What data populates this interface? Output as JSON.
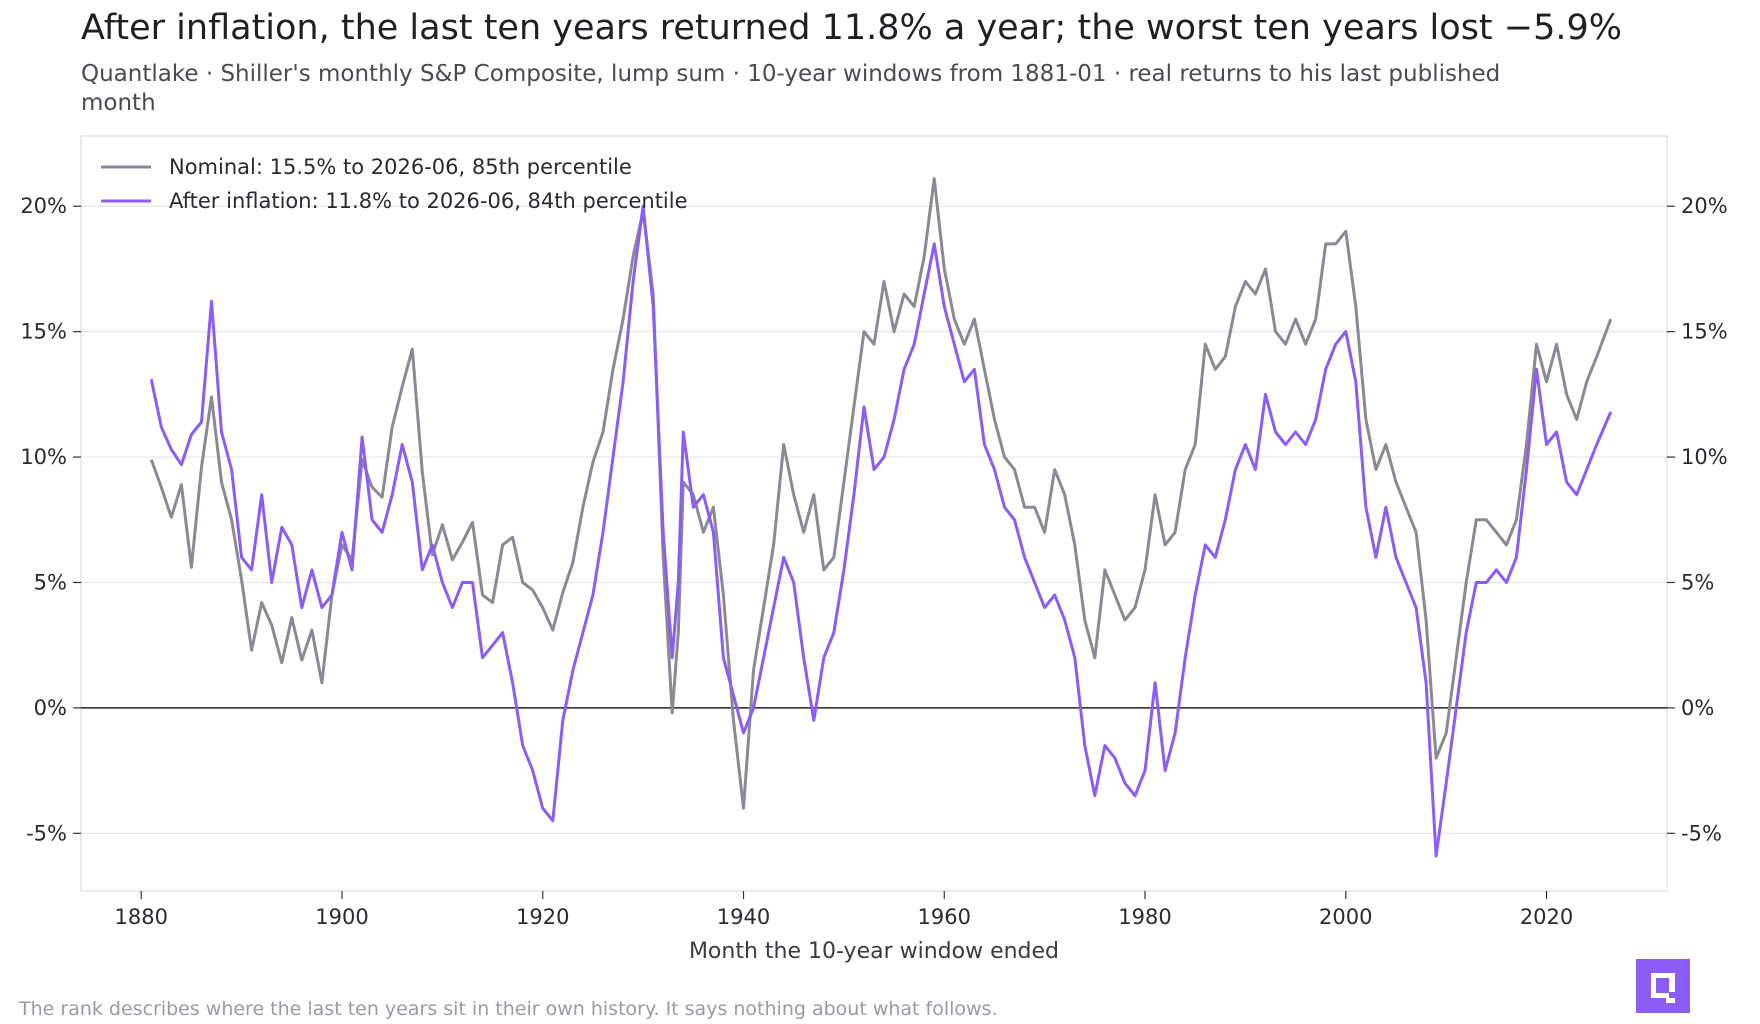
{
  "header": {
    "title": "After inflation, the last ten years returned 11.8% a year; the worst ten years lost −5.9%",
    "subtitle": "Quantlake · Shiller's monthly S&P Composite, lump sum · 10-year windows from 1881-01 · real returns to his last published month"
  },
  "footer": {
    "note": "The rank describes where the last ten years sit in their own history. It says nothing about what follows."
  },
  "logo": {
    "icon": "quantlake-logo-icon",
    "color": "#8b5cf6"
  },
  "chart_data": {
    "type": "line",
    "xlabel": "Month the 10-year window ended",
    "ylabel": "",
    "xlim": [
      1874,
      2032
    ],
    "ylim": [
      -7.3,
      22.8
    ],
    "x_ticks": [
      1880,
      1900,
      1920,
      1940,
      1960,
      1980,
      2000,
      2020
    ],
    "x_tick_labels": [
      "1880",
      "1900",
      "1920",
      "1940",
      "1960",
      "1980",
      "2000",
      "2020"
    ],
    "y_ticks": [
      -5,
      0,
      5,
      10,
      15,
      20
    ],
    "y_tick_labels": [
      "-5%",
      "0%",
      "5%",
      "10%",
      "15%",
      "20%"
    ],
    "zero_line": true,
    "grid": "horizontal",
    "legend_position": "top-left",
    "series": [
      {
        "name": "Nominal: 15.5% to 2026-06, 85th percentile",
        "color": "#8a8a94",
        "points": [
          [
            1881.0,
            9.9
          ],
          [
            1882.0,
            8.8
          ],
          [
            1883.0,
            7.6
          ],
          [
            1884.0,
            8.9
          ],
          [
            1885.0,
            5.6
          ],
          [
            1886.0,
            9.6
          ],
          [
            1887.0,
            12.4
          ],
          [
            1888.0,
            9.0
          ],
          [
            1889.0,
            7.5
          ],
          [
            1890.0,
            5.1
          ],
          [
            1891.0,
            2.3
          ],
          [
            1892.0,
            4.2
          ],
          [
            1893.0,
            3.3
          ],
          [
            1894.0,
            1.8
          ],
          [
            1895.0,
            3.6
          ],
          [
            1896.0,
            1.9
          ],
          [
            1897.0,
            3.1
          ],
          [
            1898.0,
            1.0
          ],
          [
            1899.0,
            4.5
          ],
          [
            1900.0,
            6.5
          ],
          [
            1901.0,
            5.9
          ],
          [
            1902.0,
            9.9
          ],
          [
            1903.0,
            8.8
          ],
          [
            1904.0,
            8.4
          ],
          [
            1905.0,
            11.2
          ],
          [
            1906.0,
            12.8
          ],
          [
            1907.0,
            14.3
          ],
          [
            1908.0,
            9.4
          ],
          [
            1909.0,
            6.1
          ],
          [
            1910.0,
            7.3
          ],
          [
            1911.0,
            5.9
          ],
          [
            1912.0,
            6.6
          ],
          [
            1913.0,
            7.4
          ],
          [
            1914.0,
            4.5
          ],
          [
            1915.0,
            4.2
          ],
          [
            1916.0,
            6.5
          ],
          [
            1917.0,
            6.8
          ],
          [
            1918.0,
            5.0
          ],
          [
            1919.0,
            4.7
          ],
          [
            1920.0,
            4.0
          ],
          [
            1921.0,
            3.1
          ],
          [
            1922.0,
            4.6
          ],
          [
            1923.0,
            5.8
          ],
          [
            1924.0,
            8.0
          ],
          [
            1925.0,
            9.8
          ],
          [
            1926.0,
            11.0
          ],
          [
            1927.0,
            13.5
          ],
          [
            1928.0,
            15.5
          ],
          [
            1929.0,
            18.0
          ],
          [
            1930.0,
            19.8
          ],
          [
            1931.0,
            16.5
          ],
          [
            1932.0,
            6.0
          ],
          [
            1932.9,
            -0.2
          ],
          [
            1933.5,
            3.0
          ],
          [
            1934.0,
            9.0
          ],
          [
            1935.0,
            8.5
          ],
          [
            1936.0,
            7.0
          ],
          [
            1937.0,
            8.0
          ],
          [
            1938.0,
            4.5
          ],
          [
            1939.0,
            -0.5
          ],
          [
            1940.0,
            -4.0
          ],
          [
            1941.0,
            1.5
          ],
          [
            1942.0,
            4.0
          ],
          [
            1943.0,
            6.5
          ],
          [
            1944.0,
            10.5
          ],
          [
            1945.0,
            8.5
          ],
          [
            1946.0,
            7.0
          ],
          [
            1947.0,
            8.5
          ],
          [
            1948.0,
            5.5
          ],
          [
            1949.0,
            6.0
          ],
          [
            1950.0,
            9.0
          ],
          [
            1951.0,
            12.0
          ],
          [
            1952.0,
            15.0
          ],
          [
            1953.0,
            14.5
          ],
          [
            1954.0,
            17.0
          ],
          [
            1955.0,
            15.0
          ],
          [
            1956.0,
            16.5
          ],
          [
            1957.0,
            16.0
          ],
          [
            1958.0,
            18.0
          ],
          [
            1959.0,
            21.1
          ],
          [
            1960.0,
            17.5
          ],
          [
            1961.0,
            15.5
          ],
          [
            1962.0,
            14.5
          ],
          [
            1963.0,
            15.5
          ],
          [
            1964.0,
            13.5
          ],
          [
            1965.0,
            11.5
          ],
          [
            1966.0,
            10.0
          ],
          [
            1967.0,
            9.5
          ],
          [
            1968.0,
            8.0
          ],
          [
            1969.0,
            8.0
          ],
          [
            1970.0,
            7.0
          ],
          [
            1971.0,
            9.5
          ],
          [
            1972.0,
            8.5
          ],
          [
            1973.0,
            6.5
          ],
          [
            1974.0,
            3.5
          ],
          [
            1975.0,
            2.0
          ],
          [
            1976.0,
            5.5
          ],
          [
            1977.0,
            4.5
          ],
          [
            1978.0,
            3.5
          ],
          [
            1979.0,
            4.0
          ],
          [
            1980.0,
            5.5
          ],
          [
            1981.0,
            8.5
          ],
          [
            1982.0,
            6.5
          ],
          [
            1983.0,
            7.0
          ],
          [
            1984.0,
            9.5
          ],
          [
            1985.0,
            10.5
          ],
          [
            1986.0,
            14.5
          ],
          [
            1987.0,
            13.5
          ],
          [
            1988.0,
            14.0
          ],
          [
            1989.0,
            16.0
          ],
          [
            1990.0,
            17.0
          ],
          [
            1991.0,
            16.5
          ],
          [
            1992.0,
            17.5
          ],
          [
            1993.0,
            15.0
          ],
          [
            1994.0,
            14.5
          ],
          [
            1995.0,
            15.5
          ],
          [
            1996.0,
            14.5
          ],
          [
            1997.0,
            15.5
          ],
          [
            1998.0,
            18.5
          ],
          [
            1999.0,
            18.5
          ],
          [
            2000.0,
            19.0
          ],
          [
            2001.0,
            16.0
          ],
          [
            2002.0,
            11.5
          ],
          [
            2003.0,
            9.5
          ],
          [
            2004.0,
            10.5
          ],
          [
            2005.0,
            9.0
          ],
          [
            2006.0,
            8.0
          ],
          [
            2007.0,
            7.0
          ],
          [
            2008.0,
            3.5
          ],
          [
            2009.0,
            -2.0
          ],
          [
            2010.0,
            -1.0
          ],
          [
            2011.0,
            2.0
          ],
          [
            2012.0,
            5.0
          ],
          [
            2013.0,
            7.5
          ],
          [
            2014.0,
            7.5
          ],
          [
            2015.0,
            7.0
          ],
          [
            2016.0,
            6.5
          ],
          [
            2017.0,
            7.5
          ],
          [
            2018.0,
            10.5
          ],
          [
            2019.0,
            14.5
          ],
          [
            2020.0,
            13.0
          ],
          [
            2021.0,
            14.5
          ],
          [
            2022.0,
            12.5
          ],
          [
            2023.0,
            11.5
          ],
          [
            2024.0,
            13.0
          ],
          [
            2025.0,
            14.0
          ],
          [
            2026.4,
            15.5
          ]
        ]
      },
      {
        "name": "After inflation: 11.8% to 2026-06, 84th percentile",
        "color": "#8b5cf6",
        "points": [
          [
            1881.0,
            13.1
          ],
          [
            1882.0,
            11.2
          ],
          [
            1883.0,
            10.3
          ],
          [
            1884.0,
            9.7
          ],
          [
            1885.0,
            10.9
          ],
          [
            1886.0,
            11.4
          ],
          [
            1887.0,
            16.2
          ],
          [
            1888.0,
            11.0
          ],
          [
            1889.0,
            9.5
          ],
          [
            1890.0,
            6.0
          ],
          [
            1891.0,
            5.5
          ],
          [
            1892.0,
            8.5
          ],
          [
            1893.0,
            5.0
          ],
          [
            1894.0,
            7.2
          ],
          [
            1895.0,
            6.5
          ],
          [
            1896.0,
            4.0
          ],
          [
            1897.0,
            5.5
          ],
          [
            1898.0,
            4.0
          ],
          [
            1899.0,
            4.5
          ],
          [
            1900.0,
            7.0
          ],
          [
            1901.0,
            5.5
          ],
          [
            1902.0,
            10.8
          ],
          [
            1903.0,
            7.5
          ],
          [
            1904.0,
            7.0
          ],
          [
            1905.0,
            8.5
          ],
          [
            1906.0,
            10.5
          ],
          [
            1907.0,
            9.0
          ],
          [
            1908.0,
            5.5
          ],
          [
            1909.0,
            6.5
          ],
          [
            1910.0,
            5.0
          ],
          [
            1911.0,
            4.0
          ],
          [
            1912.0,
            5.0
          ],
          [
            1913.0,
            5.0
          ],
          [
            1914.0,
            2.0
          ],
          [
            1915.0,
            2.5
          ],
          [
            1916.0,
            3.0
          ],
          [
            1917.0,
            1.0
          ],
          [
            1918.0,
            -1.5
          ],
          [
            1919.0,
            -2.5
          ],
          [
            1920.0,
            -4.0
          ],
          [
            1921.0,
            -4.5
          ],
          [
            1922.0,
            -0.5
          ],
          [
            1923.0,
            1.5
          ],
          [
            1924.0,
            3.0
          ],
          [
            1925.0,
            4.5
          ],
          [
            1926.0,
            7.0
          ],
          [
            1927.0,
            10.0
          ],
          [
            1928.0,
            13.0
          ],
          [
            1929.0,
            17.0
          ],
          [
            1930.0,
            20.0
          ],
          [
            1931.0,
            16.0
          ],
          [
            1932.0,
            7.0
          ],
          [
            1932.9,
            2.0
          ],
          [
            1933.5,
            5.0
          ],
          [
            1934.0,
            11.0
          ],
          [
            1935.0,
            8.0
          ],
          [
            1936.0,
            8.5
          ],
          [
            1937.0,
            7.0
          ],
          [
            1938.0,
            2.0
          ],
          [
            1939.0,
            0.5
          ],
          [
            1940.0,
            -1.0
          ],
          [
            1941.0,
            0.0
          ],
          [
            1942.0,
            2.0
          ],
          [
            1943.0,
            4.0
          ],
          [
            1944.0,
            6.0
          ],
          [
            1945.0,
            5.0
          ],
          [
            1946.0,
            2.0
          ],
          [
            1947.0,
            -0.5
          ],
          [
            1948.0,
            2.0
          ],
          [
            1949.0,
            3.0
          ],
          [
            1950.0,
            5.5
          ],
          [
            1951.0,
            8.5
          ],
          [
            1952.0,
            12.0
          ],
          [
            1953.0,
            9.5
          ],
          [
            1954.0,
            10.0
          ],
          [
            1955.0,
            11.5
          ],
          [
            1956.0,
            13.5
          ],
          [
            1957.0,
            14.5
          ],
          [
            1958.0,
            16.5
          ],
          [
            1959.0,
            18.5
          ],
          [
            1960.0,
            16.0
          ],
          [
            1961.0,
            14.5
          ],
          [
            1962.0,
            13.0
          ],
          [
            1963.0,
            13.5
          ],
          [
            1964.0,
            10.5
          ],
          [
            1965.0,
            9.5
          ],
          [
            1966.0,
            8.0
          ],
          [
            1967.0,
            7.5
          ],
          [
            1968.0,
            6.0
          ],
          [
            1969.0,
            5.0
          ],
          [
            1970.0,
            4.0
          ],
          [
            1971.0,
            4.5
          ],
          [
            1972.0,
            3.5
          ],
          [
            1973.0,
            2.0
          ],
          [
            1974.0,
            -1.5
          ],
          [
            1975.0,
            -3.5
          ],
          [
            1976.0,
            -1.5
          ],
          [
            1977.0,
            -2.0
          ],
          [
            1978.0,
            -3.0
          ],
          [
            1979.0,
            -3.5
          ],
          [
            1980.0,
            -2.5
          ],
          [
            1981.0,
            1.0
          ],
          [
            1982.0,
            -2.5
          ],
          [
            1983.0,
            -1.0
          ],
          [
            1984.0,
            2.0
          ],
          [
            1985.0,
            4.5
          ],
          [
            1986.0,
            6.5
          ],
          [
            1987.0,
            6.0
          ],
          [
            1988.0,
            7.5
          ],
          [
            1989.0,
            9.5
          ],
          [
            1990.0,
            10.5
          ],
          [
            1991.0,
            9.5
          ],
          [
            1992.0,
            12.5
          ],
          [
            1993.0,
            11.0
          ],
          [
            1994.0,
            10.5
          ],
          [
            1995.0,
            11.0
          ],
          [
            1996.0,
            10.5
          ],
          [
            1997.0,
            11.5
          ],
          [
            1998.0,
            13.5
          ],
          [
            1999.0,
            14.5
          ],
          [
            2000.0,
            15.0
          ],
          [
            2001.0,
            13.0
          ],
          [
            2002.0,
            8.0
          ],
          [
            2003.0,
            6.0
          ],
          [
            2004.0,
            8.0
          ],
          [
            2005.0,
            6.0
          ],
          [
            2006.0,
            5.0
          ],
          [
            2007.0,
            4.0
          ],
          [
            2008.0,
            1.0
          ],
          [
            2009.0,
            -5.9
          ],
          [
            2010.0,
            -3.0
          ],
          [
            2011.0,
            0.0
          ],
          [
            2012.0,
            3.0
          ],
          [
            2013.0,
            5.0
          ],
          [
            2014.0,
            5.0
          ],
          [
            2015.0,
            5.5
          ],
          [
            2016.0,
            5.0
          ],
          [
            2017.0,
            6.0
          ],
          [
            2018.0,
            9.5
          ],
          [
            2019.0,
            13.5
          ],
          [
            2020.0,
            10.5
          ],
          [
            2021.0,
            11.0
          ],
          [
            2022.0,
            9.0
          ],
          [
            2023.0,
            8.5
          ],
          [
            2024.0,
            9.5
          ],
          [
            2025.0,
            10.5
          ],
          [
            2026.4,
            11.8
          ]
        ]
      }
    ]
  }
}
